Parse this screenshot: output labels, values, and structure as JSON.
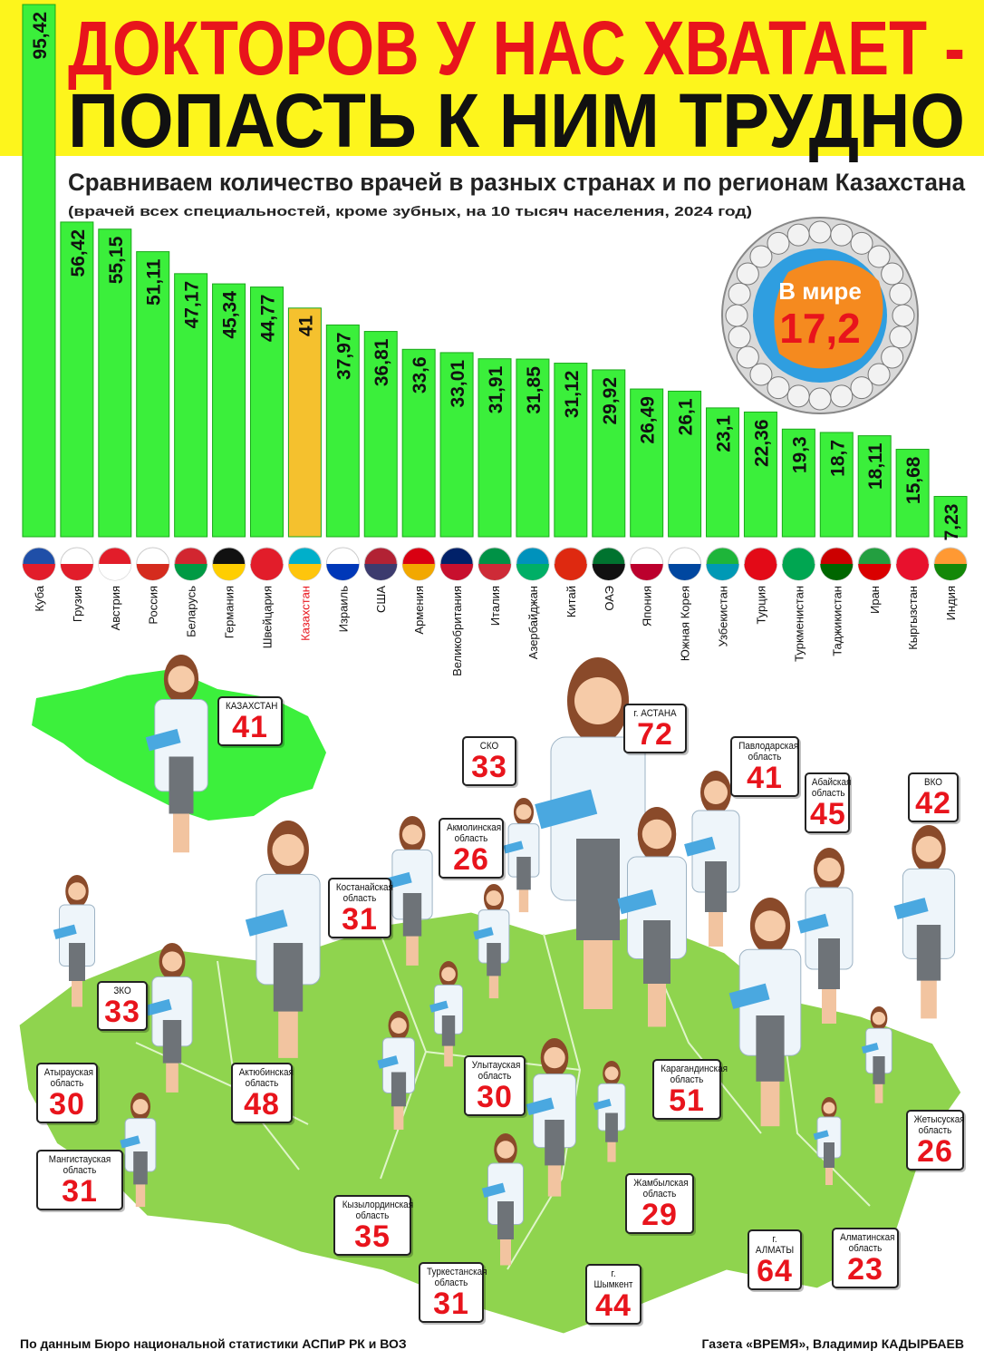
{
  "title_lines": [
    "ДОКТОРОВ У НАС ХВАТАЕТ -",
    "ПОПАСТЬ К НИМ ТРУДНО"
  ],
  "chart_data": {
    "type": "bar",
    "title": "Сравниваем количество врачей в разных странах и по регионам Казахстана",
    "subtitle": "(врачей всех специальностей, кроме зубных, на 10 тысяч населения, 2024 год)",
    "categories": [
      "Куба",
      "Грузия",
      "Австрия",
      "Россия",
      "Беларусь",
      "Германия",
      "Швейцария",
      "Казахстан",
      "Израиль",
      "США",
      "Армения",
      "Великобритания",
      "Италия",
      "Азербайджан",
      "Китай",
      "ОАЭ",
      "Япония",
      "Южная Корея",
      "Узбекистан",
      "Турция",
      "Туркменистан",
      "Таджикистан",
      "Иран",
      "Кыргызстан",
      "Индия"
    ],
    "values": [
      95.42,
      56.42,
      55.15,
      51.11,
      47.17,
      45.34,
      44.77,
      41,
      37.97,
      36.81,
      33.6,
      33.01,
      31.91,
      31.85,
      31.12,
      29.92,
      26.49,
      26.1,
      23.1,
      22.36,
      19.3,
      18.7,
      18.11,
      15.68,
      7.23
    ],
    "value_labels": [
      "95,42",
      "56,42",
      "55,15",
      "51,11",
      "47,17",
      "45,34",
      "44,77",
      "41",
      "37,97",
      "36,81",
      "33,6",
      "33,01",
      "31,91",
      "31,85",
      "31,12",
      "29,92",
      "26,49",
      "26,1",
      "23,1",
      "22,36",
      "19,3",
      "18,7",
      "18,11",
      "15,68",
      "7,23"
    ],
    "colors": [
      "#3bef3b",
      "#3bef3b",
      "#3bef3b",
      "#3bef3b",
      "#3bef3b",
      "#3bef3b",
      "#3bef3b",
      "#f5c12e",
      "#3bef3b",
      "#3bef3b",
      "#3bef3b",
      "#3bef3b",
      "#3bef3b",
      "#3bef3b",
      "#3bef3b",
      "#3bef3b",
      "#3bef3b",
      "#3bef3b",
      "#3bef3b",
      "#3bef3b",
      "#3bef3b",
      "#3bef3b",
      "#3bef3b",
      "#3bef3b",
      "#3bef3b"
    ]
  },
  "world": {
    "label": "В мире",
    "value": 17.2,
    "value_label": "17,2"
  },
  "regions": [
    {
      "name": "КАЗАХСТАН",
      "value": 41
    },
    {
      "name": "г. АСТАНА",
      "value": 72
    },
    {
      "name": "СКО",
      "value": 33
    },
    {
      "name": "Павлодарская область",
      "value": 41
    },
    {
      "name": "Акмолинская область",
      "value": 26
    },
    {
      "name": "Абайская область",
      "value": 45
    },
    {
      "name": "ВКО",
      "value": 42
    },
    {
      "name": "Костанайская область",
      "value": 31
    },
    {
      "name": "ЗКО",
      "value": 33
    },
    {
      "name": "Атырауская область",
      "value": 30
    },
    {
      "name": "Актюбинская область",
      "value": 48
    },
    {
      "name": "Улытауская область",
      "value": 30
    },
    {
      "name": "Карагандинская область",
      "value": 51
    },
    {
      "name": "Жетысуская область",
      "value": 26
    },
    {
      "name": "Мангистауская область",
      "value": 31
    },
    {
      "name": "Жамбылская область",
      "value": 29
    },
    {
      "name": "Кызылординская область",
      "value": 35
    },
    {
      "name": "г. АЛМАТЫ",
      "value": 64
    },
    {
      "name": "Алматинская область",
      "value": 23
    },
    {
      "name": "Туркестанская область",
      "value": 31
    },
    {
      "name": "г. Шымкент",
      "value": 44
    }
  ],
  "footer": {
    "source": "По данным Бюро национальной статистики АСПиР РК и ВОЗ",
    "credit": "Газета «ВРЕМЯ», Владимир КАДЫРБАЕВ"
  }
}
